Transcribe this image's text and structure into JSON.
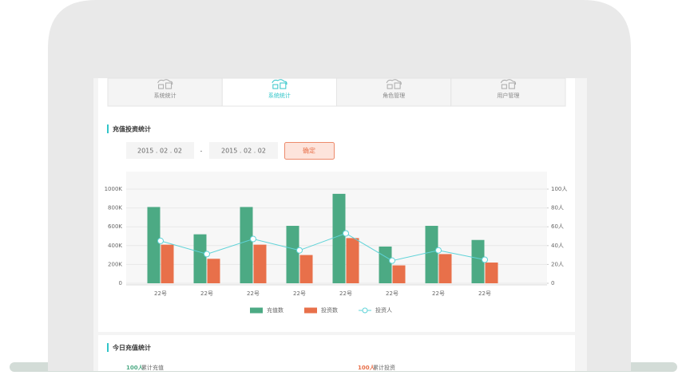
{
  "tabs": [
    "系统统计",
    "系统统计",
    "角色管理",
    "用户管理"
  ],
  "section1": {
    "title": "充值投资统计",
    "date_from": "2015 . 02 . 02",
    "separator": "-",
    "date_to": "2015 . 02 . 02",
    "button": "确定"
  },
  "chart_data": {
    "type": "bar",
    "categories": [
      "22号",
      "22号",
      "22号",
      "22号",
      "22号",
      "22号",
      "22号",
      "22号"
    ],
    "series": [
      {
        "name": "充值数",
        "color": "#4caa84",
        "values": [
          810000,
          520000,
          810000,
          610000,
          950000,
          390000,
          610000,
          460000
        ]
      },
      {
        "name": "投资数",
        "color": "#e8704a",
        "values": [
          410000,
          260000,
          410000,
          300000,
          480000,
          190000,
          310000,
          220000
        ]
      },
      {
        "name": "投资人",
        "type": "line",
        "axis": "y2",
        "color": "#5fd3d8",
        "values": [
          45,
          31,
          47,
          35,
          53,
          24,
          35,
          25
        ]
      }
    ],
    "ylim": [
      0,
      1000000
    ],
    "yticks": [
      0,
      {
        "value": 200000,
        "label": "200K"
      },
      {
        "value": 400000,
        "label": "400K"
      },
      {
        "value": 600000,
        "label": "600K"
      },
      {
        "value": 800000,
        "label": "800K"
      },
      {
        "value": 1000000,
        "label": "1000K"
      }
    ],
    "y2lim": [
      0,
      100
    ],
    "y2ticks": [
      0,
      {
        "value": 20,
        "label": "20人"
      },
      {
        "value": 40,
        "label": "40人"
      },
      {
        "value": 60,
        "label": "60人"
      },
      {
        "value": 80,
        "label": "80人"
      },
      {
        "value": 100,
        "label": "100人"
      }
    ],
    "grid": true
  },
  "section2": {
    "title": "今日充值统计",
    "stats": [
      {
        "value": "100人",
        "label": "累计充值"
      },
      {
        "value": "100人",
        "label": "累计投资"
      }
    ]
  }
}
